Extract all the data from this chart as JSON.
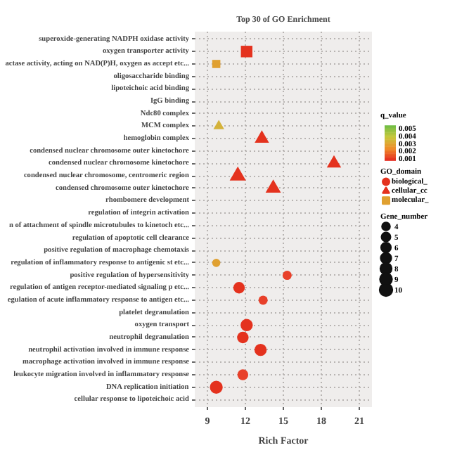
{
  "chart_data": {
    "type": "bubble",
    "title": "Top 30 of GO Enrichment",
    "xlabel": "Rich Factor",
    "orientation": "horizontal",
    "categories": [
      "superoxide-generating NADPH oxidase activity",
      "oxygen transporter activity",
      "actase activity, acting on NAD(P)H, oxygen as accept etc...",
      "oligosaccharide binding",
      "lipoteichoic acid binding",
      "IgG binding",
      "Ndc80 complex",
      "MCM complex",
      "hemoglobin complex",
      "condensed nuclear chromosome outer kinetochore",
      "condensed nuclear chromosome kinetochore",
      "condensed nuclear chromosome, centromeric region",
      "condensed chromosome outer kinetochore",
      "rhombomere development",
      "regulation of integrin activation",
      "n of attachment of spindle microtubules to kinetoch etc...",
      "regulation of apoptotic cell clearance",
      "positive regulation of macrophage chemotaxis",
      "regulation of inflammatory response to antigenic st etc...",
      "positive regulation of hypersensitivity",
      "regulation of antigen receptor-mediated signaling p etc...",
      "egulation of acute inflammatory response to antigen etc...",
      "platelet degranulation",
      "oxygen transport",
      "neutrophil degranulation",
      "neutrophil activation involved in immune response",
      "macrophage activation involved in immune response",
      "leukocyte migration involved in inflammatory response",
      "DNA replication initiation",
      "cellular response to lipoteichoic acid"
    ],
    "series": [
      {
        "name": "biological_",
        "marker": "circle",
        "values": [
          null,
          null,
          null,
          null,
          null,
          null,
          null,
          null,
          null,
          null,
          null,
          null,
          null,
          null,
          null,
          null,
          null,
          null,
          9.7,
          15.3,
          11.5,
          13.4,
          null,
          12.1,
          11.8,
          13.2,
          null,
          11.8,
          9.7,
          null
        ],
        "sizes": [
          null,
          null,
          null,
          null,
          null,
          null,
          null,
          null,
          null,
          null,
          null,
          null,
          null,
          null,
          null,
          null,
          null,
          null,
          4,
          5,
          8,
          5,
          null,
          9,
          8,
          9,
          null,
          7,
          10,
          null
        ],
        "colors": [
          null,
          null,
          null,
          null,
          null,
          null,
          null,
          null,
          null,
          null,
          null,
          null,
          null,
          null,
          null,
          null,
          null,
          null,
          "#e0a030",
          "#e8402a",
          "#e4321e",
          "#e8402a",
          null,
          "#e4321e",
          "#e4321e",
          "#e4321e",
          null,
          "#e8402a",
          "#e4321e",
          null
        ]
      },
      {
        "name": "cellular_cc",
        "marker": "triangle",
        "values": [
          null,
          null,
          null,
          null,
          null,
          null,
          null,
          9.9,
          13.3,
          null,
          19.0,
          11.4,
          14.2,
          null,
          null,
          null,
          null,
          null,
          null,
          null,
          null,
          null,
          null,
          null,
          null,
          null,
          null,
          null,
          null,
          null
        ],
        "sizes": [
          null,
          null,
          null,
          null,
          null,
          null,
          null,
          4,
          7,
          null,
          7,
          9,
          8,
          null,
          null,
          null,
          null,
          null,
          null,
          null,
          null,
          null,
          null,
          null,
          null,
          null,
          null,
          null,
          null,
          null
        ],
        "colors": [
          null,
          null,
          null,
          null,
          null,
          null,
          null,
          "#d4b23a",
          "#e4321e",
          null,
          "#e4321e",
          "#e4321e",
          "#e4321e",
          null,
          null,
          null,
          null,
          null,
          null,
          null,
          null,
          null,
          null,
          null,
          null,
          null,
          null,
          null,
          null,
          null
        ]
      },
      {
        "name": "molecular_",
        "marker": "square",
        "values": [
          null,
          12.1,
          9.7,
          null,
          null,
          null,
          null,
          null,
          null,
          null,
          null,
          null,
          null,
          null,
          null,
          null,
          null,
          null,
          null,
          null,
          null,
          null,
          null,
          null,
          null,
          null,
          null,
          null,
          null,
          null
        ],
        "sizes": [
          null,
          8,
          4,
          null,
          null,
          null,
          null,
          null,
          null,
          null,
          null,
          null,
          null,
          null,
          null,
          null,
          null,
          null,
          null,
          null,
          null,
          null,
          null,
          null,
          null,
          null,
          null,
          null,
          null,
          null
        ],
        "colors": [
          null,
          "#e4321e",
          "#e0a030",
          null,
          null,
          null,
          null,
          null,
          null,
          null,
          null,
          null,
          null,
          null,
          null,
          null,
          null,
          null,
          null,
          null,
          null,
          null,
          null,
          null,
          null,
          null,
          null,
          null,
          null,
          null
        ]
      }
    ],
    "xlim": [
      8,
      22
    ],
    "xticks": [
      9,
      12,
      15,
      18,
      21
    ],
    "clabel": "q_value",
    "clim": [
      0.0007,
      0.0053
    ],
    "cticks": [
      0.005,
      0.004,
      0.003,
      0.002,
      0.001
    ],
    "legend_title": "GO_domain",
    "size_legend": [
      4,
      5,
      6,
      7,
      8,
      9,
      10
    ],
    "annotations": [
      "Gene_number"
    ],
    "legend": "right",
    "grid": true
  }
}
